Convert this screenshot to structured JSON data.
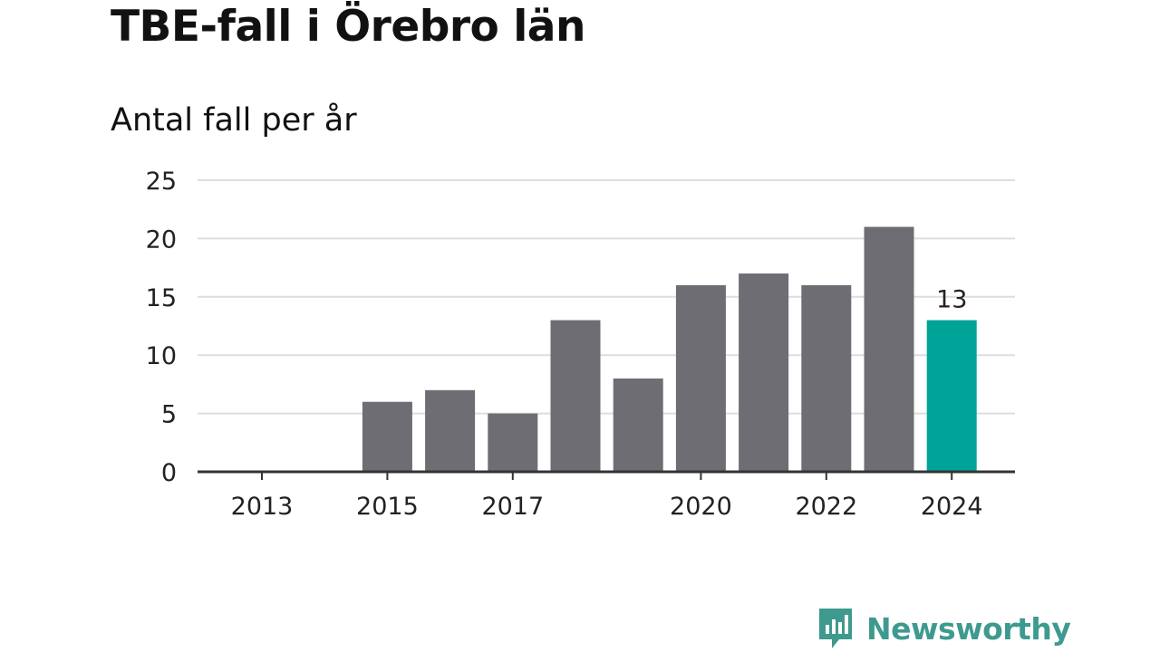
{
  "colors": {
    "bar_default": "#6e6d73",
    "bar_highlight": "#00a398",
    "gridline": "#dddddd",
    "axis": "#333333",
    "brand": "#3e9a8e"
  },
  "chart_data": {
    "type": "bar",
    "title": "TBE-fall i Örebro län",
    "subtitle": "Antal fall per år",
    "xlabel": "",
    "ylabel": "",
    "categories": [
      "2013",
      "2014",
      "2015",
      "2016",
      "2017",
      "2018",
      "2019",
      "2020",
      "2021",
      "2022",
      "2023",
      "2024"
    ],
    "values": [
      0,
      0,
      6,
      7,
      5,
      13,
      8,
      16,
      17,
      16,
      21,
      13
    ],
    "x_tick_labels": [
      "2013",
      "2015",
      "2017",
      "2020",
      "2022",
      "2024"
    ],
    "y_ticks": [
      0,
      5,
      10,
      15,
      20,
      25
    ],
    "ylim": [
      0,
      25
    ],
    "highlight_category": "2024",
    "data_labels": [
      {
        "category": "2024",
        "text": "13"
      }
    ],
    "grid": true,
    "legend": "none"
  },
  "brand": {
    "icon": "newsworthy-chart-bubble-icon",
    "name": "Newsworthy"
  }
}
